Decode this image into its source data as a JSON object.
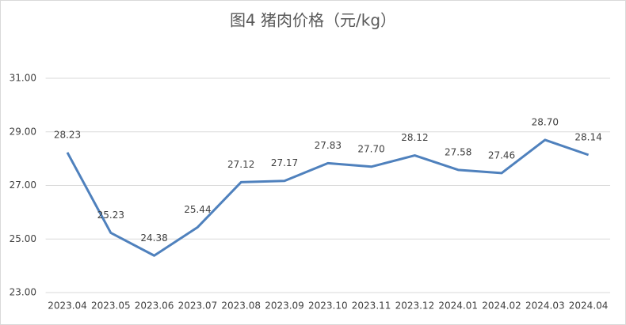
{
  "chart_data": {
    "type": "line",
    "title": "图4  猪肉价格（元/kg）",
    "categories": [
      "2023.04",
      "2023.05",
      "2023.06",
      "2023.07",
      "2023.08",
      "2023.09",
      "2023.10",
      "2023.11",
      "2023.12",
      "2024.01",
      "2024.02",
      "2024.03",
      "2024.04"
    ],
    "series": [
      {
        "name": "猪肉价格",
        "color": "#4f81bd",
        "values": [
          28.23,
          25.23,
          24.38,
          25.44,
          27.12,
          27.17,
          27.83,
          27.7,
          28.12,
          27.58,
          27.46,
          28.7,
          28.14
        ],
        "value_labels": [
          "28.23",
          "25.23",
          "24.38",
          "25.44",
          "27.12",
          "27.17",
          "27.83",
          "27.70",
          "28.12",
          "27.58",
          "27.46",
          "28.70",
          "28.14"
        ]
      }
    ],
    "ylim": [
      23,
      31
    ],
    "yticks": [
      {
        "value": 23,
        "label": "23.00"
      },
      {
        "value": 25,
        "label": "25.00"
      },
      {
        "value": 27,
        "label": "27.00"
      },
      {
        "value": 29,
        "label": "29.00"
      },
      {
        "value": 31,
        "label": "31.00"
      }
    ],
    "grid": true
  }
}
